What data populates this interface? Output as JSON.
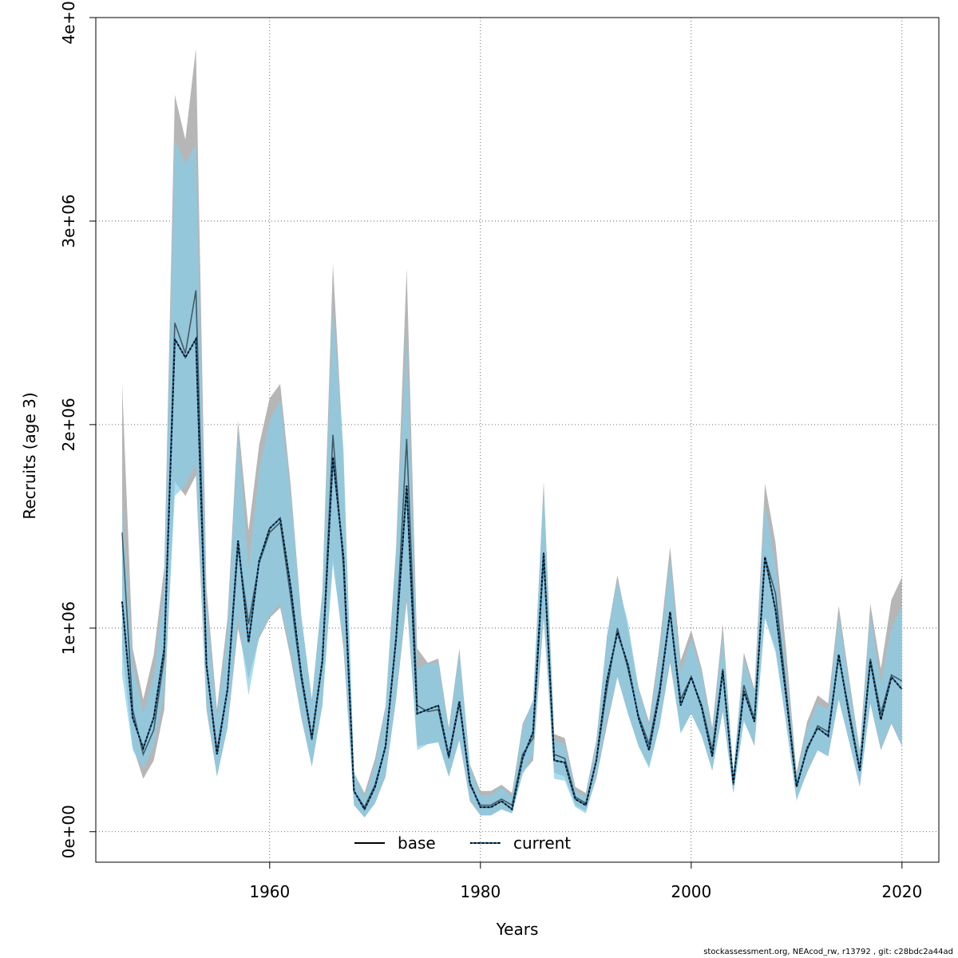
{
  "chart_data": {
    "type": "line",
    "title": "",
    "xlabel": "Years",
    "ylabel": "Recruits (age 3)",
    "xlim": [
      1943.5,
      2023.5
    ],
    "ylim": [
      -150000,
      4000000
    ],
    "x_ticks": [
      1960,
      1980,
      2000,
      2020
    ],
    "x_tick_labels": [
      "1960",
      "1980",
      "2000",
      "2020"
    ],
    "y_ticks": [
      0,
      1000000,
      2000000,
      3000000,
      4000000
    ],
    "y_tick_labels": [
      "0e+00",
      "1e+06",
      "2e+06",
      "3e+06",
      "4e+06"
    ],
    "grid": true,
    "legend_position": "bottom",
    "colors": {
      "base_band": "#a9a9a9",
      "current_band": "#87ceeb",
      "base_line": "#000000",
      "current_line": "#1f5f8b"
    },
    "x": [
      1946,
      1947,
      1948,
      1949,
      1950,
      1951,
      1952,
      1953,
      1954,
      1955,
      1956,
      1957,
      1958,
      1959,
      1960,
      1961,
      1962,
      1963,
      1964,
      1965,
      1966,
      1967,
      1968,
      1969,
      1970,
      1971,
      1972,
      1973,
      1974,
      1975,
      1976,
      1977,
      1978,
      1979,
      1980,
      1981,
      1982,
      1983,
      1984,
      1985,
      1986,
      1987,
      1988,
      1989,
      1990,
      1991,
      1992,
      1993,
      1994,
      1995,
      1996,
      1997,
      1998,
      1999,
      2000,
      2001,
      2002,
      2003,
      2004,
      2005,
      2006,
      2007,
      2008,
      2009,
      2010,
      2011,
      2012,
      2013,
      2014,
      2015,
      2016,
      2017,
      2018,
      2019,
      2020
    ],
    "series": [
      {
        "name": "base",
        "style": "solid",
        "values": [
          1470000,
          600000,
          380000,
          500000,
          860000,
          2500000,
          2350000,
          2660000,
          820000,
          400000,
          700000,
          1400000,
          1020000,
          1320000,
          1470000,
          1520000,
          1150000,
          750000,
          450000,
          830000,
          1950000,
          1300000,
          200000,
          120000,
          230000,
          420000,
          960000,
          1930000,
          620000,
          590000,
          600000,
          360000,
          630000,
          230000,
          130000,
          130000,
          160000,
          130000,
          380000,
          460000,
          1350000,
          380000,
          360000,
          170000,
          140000,
          350000,
          700000,
          1000000,
          800000,
          570000,
          430000,
          700000,
          1080000,
          650000,
          760000,
          620000,
          400000,
          800000,
          230000,
          720000,
          550000,
          1350000,
          1170000,
          700000,
          230000,
          400000,
          520000,
          490000,
          860000,
          590000,
          310000,
          850000,
          580000,
          770000,
          740000
        ],
        "lower": [
          900000,
          420000,
          260000,
          350000,
          600000,
          1720000,
          1650000,
          1750000,
          600000,
          270000,
          510000,
          1000000,
          750000,
          950000,
          1050000,
          1100000,
          850000,
          560000,
          320000,
          620000,
          1340000,
          900000,
          130000,
          70000,
          140000,
          270000,
          650000,
          1130000,
          420000,
          430000,
          440000,
          270000,
          450000,
          150000,
          80000,
          80000,
          110000,
          90000,
          290000,
          350000,
          1050000,
          290000,
          270000,
          130000,
          100000,
          260000,
          520000,
          760000,
          580000,
          420000,
          320000,
          520000,
          830000,
          490000,
          580000,
          470000,
          300000,
          590000,
          190000,
          550000,
          420000,
          1050000,
          900000,
          540000,
          160000,
          290000,
          400000,
          370000,
          650000,
          440000,
          220000,
          630000,
          400000,
          530000,
          420000
        ],
        "upper": [
          2200000,
          900000,
          650000,
          870000,
          1300000,
          3620000,
          3400000,
          3850000,
          1200000,
          600000,
          1050000,
          2020000,
          1480000,
          1900000,
          2130000,
          2200000,
          1700000,
          1060000,
          650000,
          1180000,
          2790000,
          1850000,
          290000,
          190000,
          360000,
          620000,
          1400000,
          2770000,
          900000,
          830000,
          850000,
          510000,
          900000,
          330000,
          200000,
          200000,
          230000,
          190000,
          530000,
          640000,
          1720000,
          480000,
          460000,
          220000,
          190000,
          450000,
          960000,
          1260000,
          1000000,
          710000,
          540000,
          920000,
          1400000,
          840000,
          990000,
          800000,
          510000,
          1020000,
          290000,
          880000,
          700000,
          1710000,
          1420000,
          900000,
          290000,
          540000,
          670000,
          630000,
          1110000,
          750000,
          400000,
          1120000,
          800000,
          1140000,
          1250000
        ]
      },
      {
        "name": "current",
        "style": "dotted",
        "values": [
          1130000,
          560000,
          410000,
          560000,
          900000,
          2420000,
          2330000,
          2420000,
          820000,
          380000,
          700000,
          1430000,
          930000,
          1330000,
          1490000,
          1540000,
          1200000,
          770000,
          460000,
          840000,
          1840000,
          1350000,
          200000,
          110000,
          220000,
          420000,
          950000,
          1700000,
          580000,
          600000,
          620000,
          370000,
          640000,
          240000,
          120000,
          120000,
          150000,
          110000,
          360000,
          490000,
          1370000,
          350000,
          340000,
          160000,
          130000,
          350000,
          740000,
          980000,
          820000,
          560000,
          400000,
          680000,
          1080000,
          620000,
          760000,
          610000,
          370000,
          790000,
          240000,
          690000,
          540000,
          1350000,
          1090000,
          670000,
          220000,
          410000,
          510000,
          470000,
          870000,
          570000,
          300000,
          840000,
          550000,
          760000,
          700000
        ],
        "lower": [
          770000,
          400000,
          310000,
          420000,
          680000,
          1650000,
          1700000,
          1810000,
          620000,
          270000,
          520000,
          1050000,
          670000,
          960000,
          1060000,
          1120000,
          880000,
          560000,
          320000,
          620000,
          1310000,
          930000,
          130000,
          70000,
          140000,
          280000,
          660000,
          1170000,
          400000,
          430000,
          440000,
          270000,
          450000,
          160000,
          80000,
          80000,
          110000,
          90000,
          280000,
          380000,
          1070000,
          260000,
          250000,
          120000,
          90000,
          270000,
          550000,
          760000,
          580000,
          420000,
          310000,
          520000,
          850000,
          480000,
          580000,
          470000,
          300000,
          600000,
          190000,
          540000,
          430000,
          1050000,
          880000,
          530000,
          150000,
          300000,
          400000,
          370000,
          650000,
          440000,
          220000,
          630000,
          410000,
          540000,
          420000
        ],
        "upper": [
          1600000,
          830000,
          580000,
          770000,
          1210000,
          3400000,
          3280000,
          3380000,
          1100000,
          560000,
          990000,
          1950000,
          1300000,
          1780000,
          2020000,
          2120000,
          1650000,
          1060000,
          640000,
          1170000,
          2580000,
          1880000,
          290000,
          170000,
          330000,
          610000,
          1370000,
          2450000,
          800000,
          830000,
          830000,
          500000,
          880000,
          320000,
          180000,
          180000,
          220000,
          170000,
          510000,
          650000,
          1700000,
          450000,
          430000,
          200000,
          170000,
          430000,
          960000,
          1230000,
          1030000,
          700000,
          520000,
          880000,
          1340000,
          780000,
          950000,
          780000,
          480000,
          970000,
          300000,
          850000,
          680000,
          1610000,
          1310000,
          800000,
          270000,
          510000,
          630000,
          600000,
          1060000,
          720000,
          390000,
          1060000,
          730000,
          1000000,
          1110000
        ]
      }
    ],
    "legend": [
      "base",
      "current"
    ]
  },
  "footer": "stockassessment.org, NEAcod_rw, r13792 , git: c28bdc2a44ad"
}
